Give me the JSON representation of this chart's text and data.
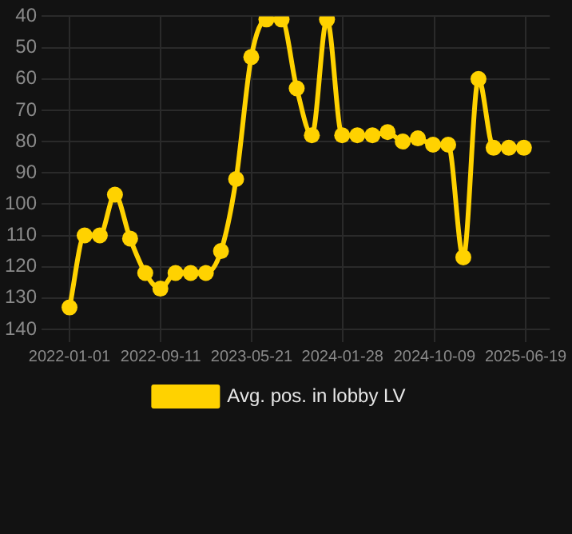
{
  "chart_data": {
    "type": "line",
    "x": [
      "2022-01-01",
      "2022-02-12",
      "2022-03-26",
      "2022-05-07",
      "2022-06-18",
      "2022-07-30",
      "2022-09-10",
      "2022-10-22",
      "2022-12-03",
      "2023-01-14",
      "2023-02-25",
      "2023-04-08",
      "2023-05-20",
      "2023-07-01",
      "2023-08-12",
      "2023-09-23",
      "2023-11-04",
      "2023-12-16",
      "2024-01-27",
      "2024-03-09",
      "2024-04-20",
      "2024-06-01",
      "2024-07-13",
      "2024-08-24",
      "2024-10-05",
      "2024-11-16",
      "2024-12-28",
      "2025-02-08",
      "2025-03-22",
      "2025-05-03",
      "2025-06-14"
    ],
    "series": [
      {
        "name": "Avg. pos. in lobby LV",
        "color": "#ffd200",
        "values": [
          133,
          110,
          110,
          97,
          111,
          122,
          127,
          122,
          122,
          122,
          115,
          92,
          53,
          41,
          41,
          63,
          78,
          41,
          78,
          78,
          78,
          77,
          80,
          79,
          81,
          81,
          117,
          60,
          82,
          82,
          82
        ]
      }
    ],
    "xlim": [
      "2021-11-20",
      "2025-08-25"
    ],
    "xticks": [
      {
        "value": "2022-01-01",
        "label": "2022-01-01"
      },
      {
        "value": "2022-09-11",
        "label": "2022-09-11"
      },
      {
        "value": "2023-05-21",
        "label": "2023-05-21"
      },
      {
        "value": "2024-01-28",
        "label": "2024-01-28"
      },
      {
        "value": "2024-10-09",
        "label": "2024-10-09"
      },
      {
        "value": "2025-06-19",
        "label": "2025-06-19"
      }
    ],
    "ylim": [
      140,
      40
    ],
    "yticks": [
      40,
      50,
      60,
      70,
      80,
      90,
      100,
      110,
      120,
      130,
      140
    ],
    "grid": true,
    "legend": "bottom",
    "marker": "circle",
    "line_style": "solid"
  }
}
